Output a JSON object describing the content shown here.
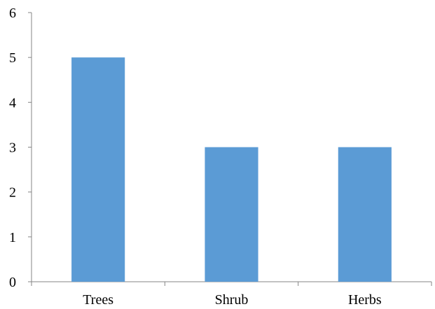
{
  "chart_data": {
    "type": "bar",
    "categories": [
      "Trees",
      "Shrub",
      "Herbs"
    ],
    "values": [
      5,
      3,
      3
    ],
    "ylim": [
      0,
      6
    ],
    "yticks": [
      "0",
      "1",
      "2",
      "3",
      "4",
      "5",
      "6"
    ],
    "grid": false,
    "legend": "none",
    "bar_color": "#5b9bd5",
    "axis_color": "#868686"
  }
}
